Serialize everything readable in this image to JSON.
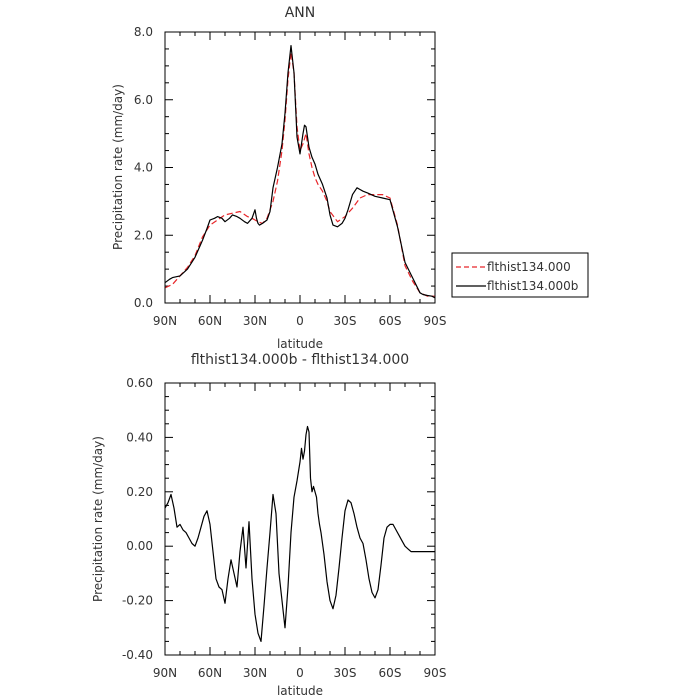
{
  "chart_data": [
    {
      "type": "line",
      "title": "ANN",
      "xlabel": "latitude",
      "ylabel": "Precipitation rate (mm/day)",
      "xlim": [
        -90,
        90
      ],
      "ylim": [
        0,
        8
      ],
      "x_ticks": [
        {
          "value": -90,
          "label": "90N"
        },
        {
          "value": -60,
          "label": "60N"
        },
        {
          "value": -30,
          "label": "30N"
        },
        {
          "value": 0,
          "label": "0"
        },
        {
          "value": 30,
          "label": "30S"
        },
        {
          "value": 60,
          "label": "60S"
        },
        {
          "value": 90,
          "label": "90S"
        }
      ],
      "y_ticks": [
        {
          "value": 0,
          "label": "0.0"
        },
        {
          "value": 2,
          "label": "2.0"
        },
        {
          "value": 4,
          "label": "4.0"
        },
        {
          "value": 6,
          "label": "6.0"
        },
        {
          "value": 8,
          "label": "8.0"
        }
      ],
      "legend": {
        "position": "right"
      },
      "series": [
        {
          "name": "flthist134.000",
          "color": "#e8262a",
          "dash": "dashed",
          "x": [
            -90,
            -85,
            -80,
            -75,
            -70,
            -65,
            -60,
            -55,
            -50,
            -45,
            -40,
            -35,
            -32,
            -30,
            -28,
            -25,
            -22,
            -18,
            -15,
            -12,
            -10,
            -8,
            -6,
            -4,
            -2,
            0,
            2,
            4,
            6,
            8,
            10,
            12,
            15,
            18,
            20,
            25,
            30,
            35,
            40,
            45,
            50,
            55,
            60,
            65,
            70,
            75,
            80,
            85,
            90
          ],
          "y": [
            0.45,
            0.55,
            0.8,
            1.05,
            1.4,
            1.95,
            2.3,
            2.45,
            2.6,
            2.65,
            2.7,
            2.55,
            2.5,
            2.45,
            2.4,
            2.35,
            2.5,
            3.0,
            3.6,
            4.5,
            5.4,
            6.6,
            7.4,
            6.8,
            5.2,
            4.5,
            4.7,
            5.0,
            4.4,
            4.0,
            3.7,
            3.5,
            3.3,
            3.0,
            2.7,
            2.4,
            2.55,
            2.8,
            3.1,
            3.2,
            3.2,
            3.2,
            3.1,
            2.3,
            1.1,
            0.65,
            0.3,
            0.2,
            0.2
          ]
        },
        {
          "name": "flthist134.000b",
          "color": "#000000",
          "dash": "solid",
          "x": [
            -90,
            -87,
            -85,
            -80,
            -75,
            -70,
            -65,
            -62,
            -60,
            -57,
            -55,
            -52,
            -50,
            -47,
            -45,
            -42,
            -40,
            -37,
            -35,
            -32,
            -30,
            -29,
            -28,
            -27,
            -25,
            -22,
            -20,
            -18,
            -15,
            -12,
            -10,
            -8,
            -6,
            -4,
            -2,
            0,
            1,
            2,
            3,
            4,
            5,
            6,
            8,
            10,
            12,
            15,
            18,
            20,
            22,
            25,
            28,
            30,
            32,
            35,
            38,
            40,
            42,
            45,
            50,
            55,
            60,
            65,
            70,
            75,
            80,
            82,
            85,
            88,
            90
          ],
          "y": [
            0.6,
            0.7,
            0.75,
            0.8,
            1.0,
            1.35,
            1.85,
            2.2,
            2.45,
            2.5,
            2.55,
            2.5,
            2.4,
            2.5,
            2.6,
            2.55,
            2.5,
            2.4,
            2.35,
            2.5,
            2.75,
            2.5,
            2.35,
            2.3,
            2.35,
            2.45,
            2.7,
            3.4,
            4.0,
            4.7,
            5.6,
            6.8,
            7.6,
            6.8,
            4.9,
            4.4,
            4.7,
            5.0,
            5.25,
            5.2,
            4.9,
            4.6,
            4.3,
            4.1,
            3.8,
            3.5,
            3.1,
            2.6,
            2.3,
            2.25,
            2.35,
            2.5,
            2.75,
            3.2,
            3.4,
            3.35,
            3.3,
            3.25,
            3.15,
            3.1,
            3.05,
            2.25,
            1.2,
            0.75,
            0.3,
            0.25,
            0.22,
            0.2,
            0.15
          ]
        }
      ]
    },
    {
      "type": "line",
      "title": "flthist134.000b - flthist134.000",
      "xlabel": "latitude",
      "ylabel": "Precipitation rate (mm/day)",
      "xlim": [
        -90,
        90
      ],
      "ylim": [
        -0.4,
        0.6
      ],
      "x_ticks": [
        {
          "value": -90,
          "label": "90N"
        },
        {
          "value": -60,
          "label": "60N"
        },
        {
          "value": -30,
          "label": "30N"
        },
        {
          "value": 0,
          "label": "0"
        },
        {
          "value": 30,
          "label": "30S"
        },
        {
          "value": 60,
          "label": "60S"
        },
        {
          "value": 90,
          "label": "90S"
        }
      ],
      "y_ticks": [
        {
          "value": -0.4,
          "label": "-0.40"
        },
        {
          "value": -0.2,
          "label": "-0.20"
        },
        {
          "value": 0,
          "label": "0.00"
        },
        {
          "value": 0.2,
          "label": "0.20"
        },
        {
          "value": 0.4,
          "label": "0.40"
        },
        {
          "value": 0.6,
          "label": "0.60"
        }
      ],
      "series": [
        {
          "color": "#000000",
          "dash": "solid",
          "x": [
            -90,
            -88,
            -86,
            -84,
            -82,
            -80,
            -78,
            -76,
            -74,
            -72,
            -70,
            -68,
            -66,
            -64,
            -62,
            -60,
            -58,
            -56,
            -54,
            -52,
            -50,
            -48,
            -46,
            -44,
            -42,
            -40,
            -38,
            -36,
            -34,
            -32,
            -30,
            -28,
            -26,
            -24,
            -22,
            -20,
            -18,
            -16,
            -14,
            -12,
            -10,
            -8,
            -6,
            -4,
            -2,
            0,
            1,
            2,
            3,
            4,
            5,
            6,
            7,
            8,
            9,
            10,
            11,
            12,
            13,
            14,
            16,
            18,
            20,
            22,
            24,
            26,
            28,
            30,
            32,
            34,
            36,
            38,
            40,
            42,
            44,
            46,
            48,
            50,
            52,
            54,
            56,
            58,
            60,
            62,
            64,
            66,
            68,
            70,
            72,
            74,
            76,
            78,
            80,
            82,
            84,
            86,
            88,
            90
          ],
          "y": [
            0.14,
            0.16,
            0.19,
            0.14,
            0.07,
            0.08,
            0.06,
            0.05,
            0.03,
            0.01,
            0.0,
            0.03,
            0.07,
            0.11,
            0.13,
            0.08,
            -0.02,
            -0.12,
            -0.15,
            -0.16,
            -0.21,
            -0.12,
            -0.05,
            -0.1,
            -0.15,
            -0.02,
            0.07,
            -0.08,
            0.09,
            -0.12,
            -0.25,
            -0.32,
            -0.35,
            -0.22,
            -0.08,
            0.05,
            0.19,
            0.12,
            -0.1,
            -0.2,
            -0.3,
            -0.15,
            0.05,
            0.18,
            0.24,
            0.31,
            0.36,
            0.32,
            0.35,
            0.41,
            0.44,
            0.42,
            0.25,
            0.2,
            0.22,
            0.2,
            0.18,
            0.12,
            0.08,
            0.05,
            -0.03,
            -0.13,
            -0.2,
            -0.23,
            -0.18,
            -0.08,
            0.03,
            0.13,
            0.17,
            0.16,
            0.12,
            0.07,
            0.03,
            0.01,
            -0.05,
            -0.12,
            -0.17,
            -0.19,
            -0.16,
            -0.07,
            0.03,
            0.07,
            0.08,
            0.08,
            0.06,
            0.04,
            0.02,
            0.0,
            -0.01,
            -0.02,
            -0.02,
            -0.02,
            -0.02,
            -0.02,
            -0.02,
            -0.02,
            -0.02,
            -0.02
          ]
        }
      ]
    }
  ]
}
